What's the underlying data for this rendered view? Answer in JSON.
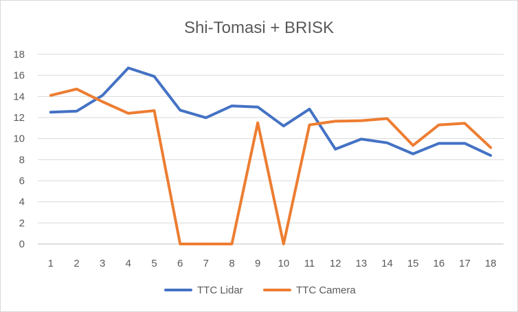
{
  "chart_data": {
    "type": "line",
    "title": "Shi-Tomasi + BRISK",
    "xlabel": "",
    "ylabel": "",
    "categories": [
      "1",
      "2",
      "3",
      "4",
      "5",
      "6",
      "7",
      "8",
      "9",
      "10",
      "11",
      "12",
      "13",
      "14",
      "15",
      "16",
      "17",
      "18"
    ],
    "ylim": [
      0,
      18
    ],
    "yticks": [
      "0",
      "2",
      "4",
      "6",
      "8",
      "10",
      "12",
      "14",
      "16",
      "18"
    ],
    "grid": true,
    "legend_position": "bottom",
    "series": [
      {
        "name": "TTC Lidar",
        "color": "#4472c4",
        "values": [
          12.5,
          12.6,
          14.1,
          16.7,
          15.9,
          12.7,
          11.98,
          13.1,
          13.0,
          11.2,
          12.8,
          9.0,
          9.95,
          9.6,
          8.55,
          9.55,
          9.55,
          8.4
        ]
      },
      {
        "name": "TTC Camera",
        "color": "#ed7d31",
        "values": [
          14.1,
          14.7,
          13.5,
          12.4,
          12.65,
          0,
          0,
          0,
          11.5,
          0,
          11.3,
          11.65,
          11.7,
          11.9,
          9.35,
          11.3,
          11.45,
          9.15
        ]
      }
    ]
  }
}
